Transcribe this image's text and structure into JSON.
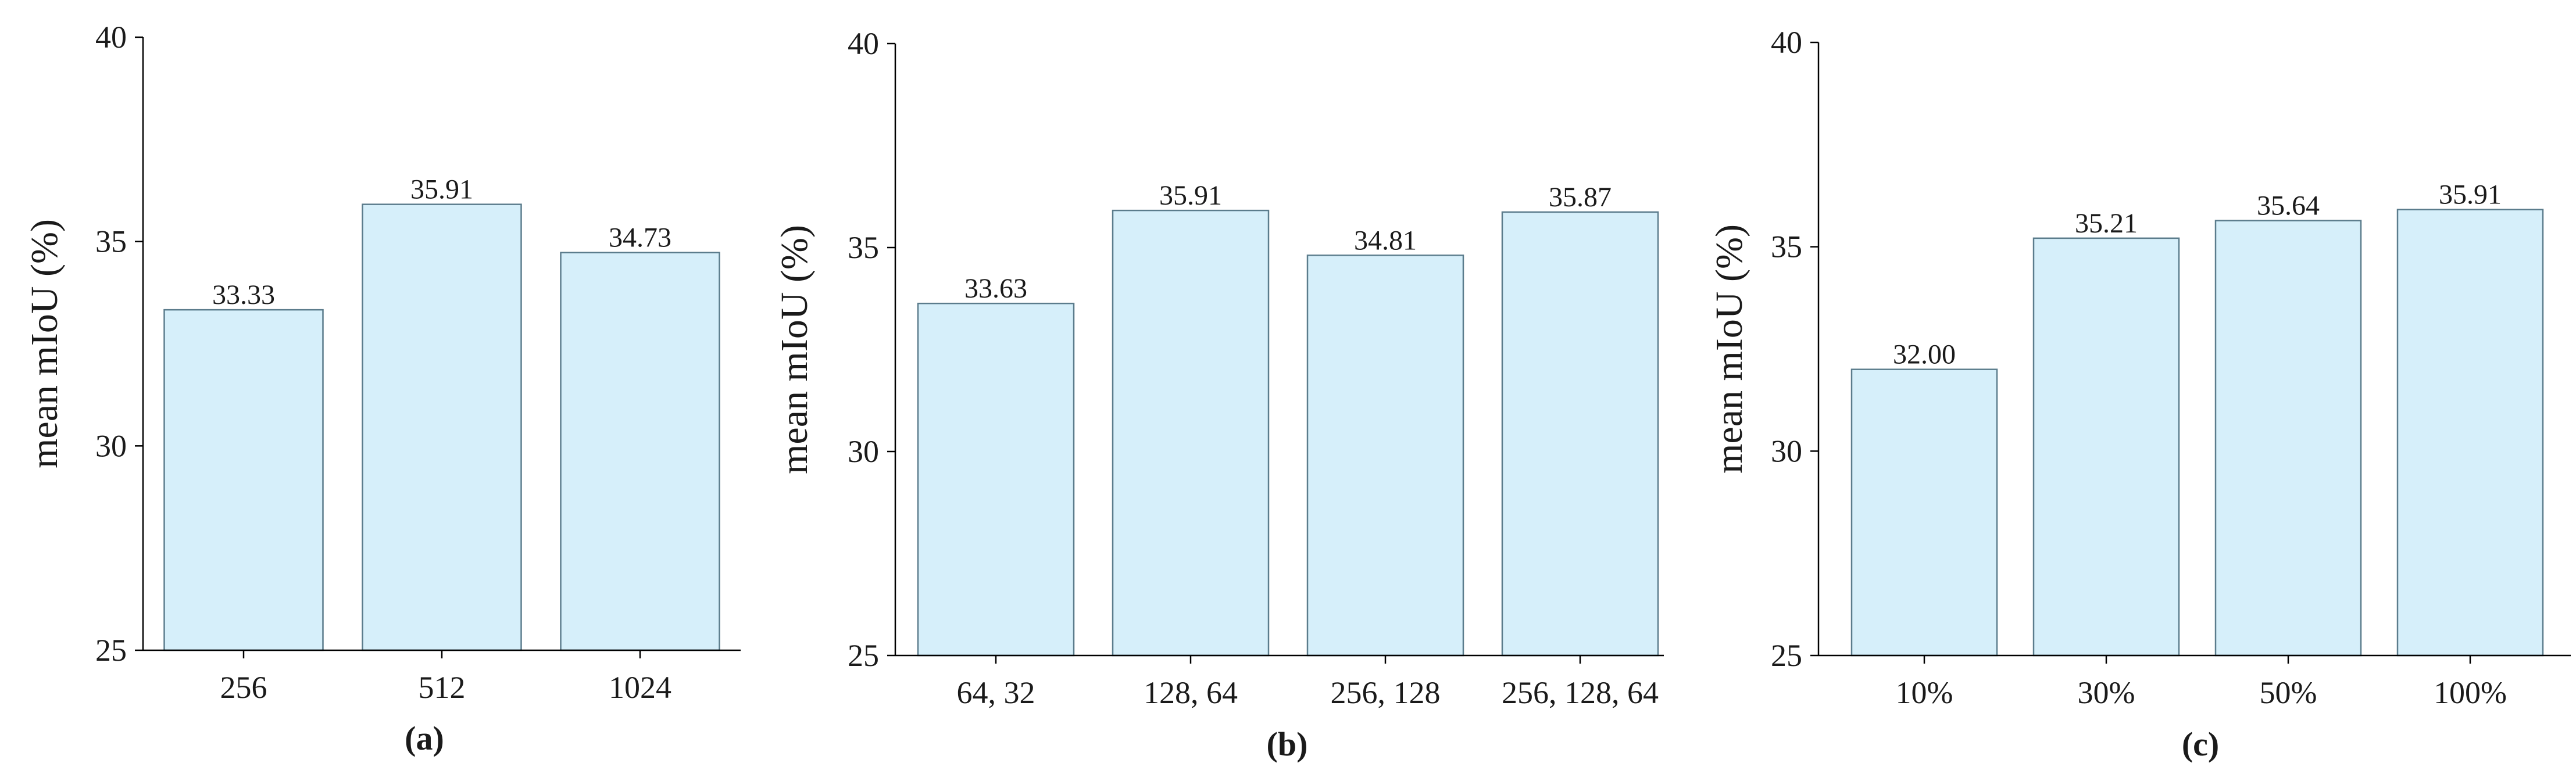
{
  "colors": {
    "bar_fill": "#d6effa",
    "bar_stroke": "#5b7c8c",
    "axis": "#000000"
  },
  "chart_data": [
    {
      "type": "bar",
      "panel_label": "(a)",
      "ylabel": "mean mIoU (%)",
      "ylim": [
        25,
        40
      ],
      "yticks": [
        25,
        30,
        35,
        40
      ],
      "categories": [
        "256",
        "512",
        "1024"
      ],
      "values": [
        33.33,
        35.91,
        34.73
      ],
      "value_labels": [
        "33.33",
        "35.91",
        "34.73"
      ],
      "grid": false
    },
    {
      "type": "bar",
      "panel_label": "(b)",
      "ylabel": "mean mIoU (%)",
      "ylim": [
        25,
        40
      ],
      "yticks": [
        25,
        30,
        35,
        40
      ],
      "categories": [
        "64, 32",
        "128, 64",
        "256, 128",
        "256, 128, 64"
      ],
      "values": [
        33.63,
        35.91,
        34.81,
        35.87
      ],
      "value_labels": [
        "33.63",
        "35.91",
        "34.81",
        "35.87"
      ],
      "grid": false
    },
    {
      "type": "bar",
      "panel_label": "(c)",
      "ylabel": "mean mIoU (%)",
      "ylim": [
        25,
        40
      ],
      "yticks": [
        25,
        30,
        35,
        40
      ],
      "categories": [
        "10%",
        "30%",
        "50%",
        "100%"
      ],
      "values": [
        32.0,
        35.21,
        35.64,
        35.91
      ],
      "value_labels": [
        "32.00",
        "35.21",
        "35.64",
        "35.91"
      ],
      "grid": false
    }
  ]
}
